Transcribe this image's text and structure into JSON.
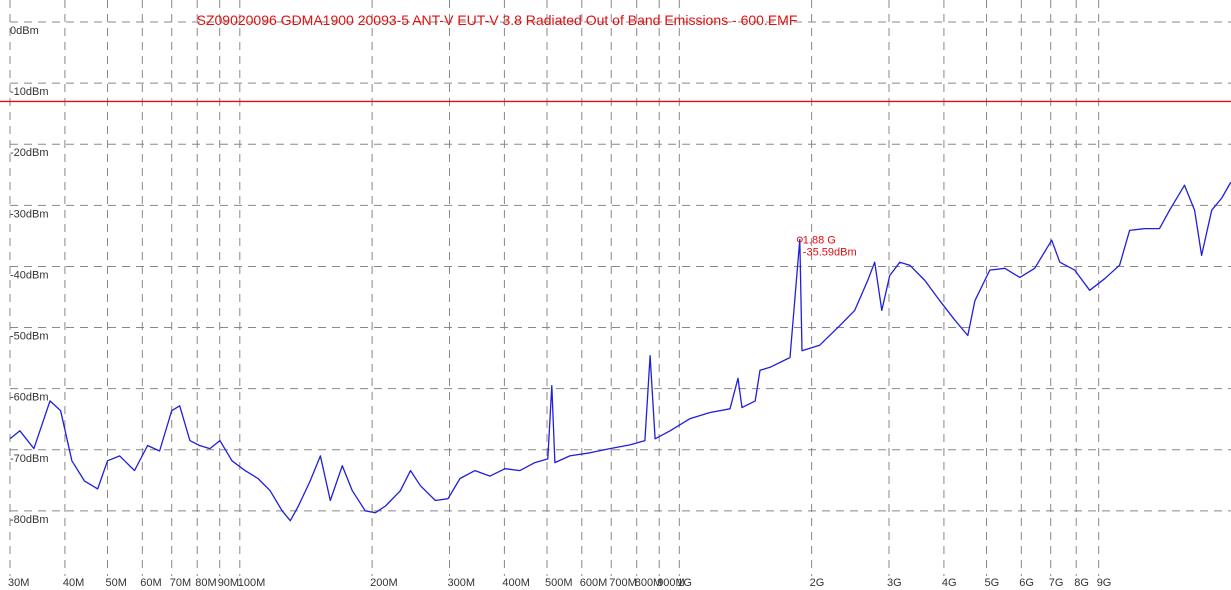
{
  "chart_data": {
    "type": "line",
    "title": "SZ09020096 GDMA1900 20093-5 ANT-V EUT-V 3.8 Radiated Out of Band Emissions - 600.EMF",
    "xscale": "log",
    "xlim": [
      30,
      18000
    ],
    "ylim": [
      -90,
      0
    ],
    "grid": true,
    "xticks": [
      {
        "value": 30,
        "label": "30M"
      },
      {
        "value": 40,
        "label": "40M"
      },
      {
        "value": 50,
        "label": "50M"
      },
      {
        "value": 60,
        "label": "60M"
      },
      {
        "value": 70,
        "label": "70M"
      },
      {
        "value": 80,
        "label": "80M"
      },
      {
        "value": 90,
        "label": "90M"
      },
      {
        "value": 100,
        "label": "100M"
      },
      {
        "value": 200,
        "label": "200M"
      },
      {
        "value": 300,
        "label": "300M"
      },
      {
        "value": 400,
        "label": "400M"
      },
      {
        "value": 500,
        "label": "500M"
      },
      {
        "value": 600,
        "label": "600M"
      },
      {
        "value": 700,
        "label": "700M"
      },
      {
        "value": 800,
        "label": "800M"
      },
      {
        "value": 900,
        "label": "900M"
      },
      {
        "value": 1000,
        "label": "1G"
      },
      {
        "value": 2000,
        "label": "2G"
      },
      {
        "value": 3000,
        "label": "3G"
      },
      {
        "value": 4000,
        "label": "4G"
      },
      {
        "value": 5000,
        "label": "5G"
      },
      {
        "value": 6000,
        "label": "6G"
      },
      {
        "value": 7000,
        "label": "7G"
      },
      {
        "value": 8000,
        "label": "8G"
      },
      {
        "value": 9000,
        "label": "9G"
      }
    ],
    "yticks": [
      {
        "value": 0,
        "label": "0dBm"
      },
      {
        "value": -10,
        "label": "-10dBm"
      },
      {
        "value": -20,
        "label": "-20dBm"
      },
      {
        "value": -30,
        "label": "-30dBm"
      },
      {
        "value": -40,
        "label": "-40dBm"
      },
      {
        "value": -50,
        "label": "-50dBm"
      },
      {
        "value": -60,
        "label": "-60dBm"
      },
      {
        "value": -70,
        "label": "-70dBm"
      },
      {
        "value": -80,
        "label": "-80dBm"
      }
    ],
    "limit": {
      "value": -13,
      "color": "#e01010"
    },
    "marker": {
      "x": 1880,
      "y": -35.59,
      "labels": [
        "1.88 G",
        "-35.59dBm"
      ],
      "color": "#e01010"
    },
    "title_color": "#e01010",
    "series": [
      {
        "color": "#1f1fdc",
        "x": [
          30,
          31.6,
          34,
          37,
          39.1,
          41.5,
          44.3,
          47.5,
          50,
          53.3,
          57.6,
          61.7,
          65.7,
          70,
          73,
          77,
          81,
          85.5,
          90.1,
          96,
          102.8,
          110,
          117.2,
          124.9,
          130.3,
          135.9,
          144.6,
          152.5,
          160.7,
          171.1,
          180.3,
          193,
          203.5,
          214.5,
          232,
          244.5,
          257.7,
          278.7,
          297.7,
          317,
          342.9,
          371,
          401.2,
          433.8,
          469.2,
          502,
          512.6,
          521,
          563.4,
          626,
          695,
          772,
          835,
          858,
          881,
          953,
          1058,
          1175,
          1304,
          1360,
          1389,
          1488,
          1526,
          1609,
          1786,
          1880,
          1902,
          2086,
          2317,
          2506,
          2683,
          2783,
          2889,
          3011,
          3175,
          3346,
          3620,
          3914,
          4236,
          4534,
          4704,
          5088,
          5502,
          5952,
          6437,
          7036,
          7339,
          7938,
          8584,
          9288,
          10044,
          10583,
          11446,
          12379,
          13046,
          14110,
          14872,
          15431,
          16268,
          17152,
          17985
        ],
        "values": [
          -68.2,
          -66.9,
          -69.8,
          -62.0,
          -63.6,
          -71.8,
          -75.1,
          -76.4,
          -71.8,
          -71.0,
          -73.4,
          -69.3,
          -70.2,
          -63.6,
          -62.8,
          -68.5,
          -69.3,
          -69.8,
          -68.5,
          -71.8,
          -73.4,
          -74.7,
          -76.7,
          -80.0,
          -81.6,
          -79.2,
          -75.1,
          -71.0,
          -78.3,
          -72.6,
          -76.7,
          -80.0,
          -80.3,
          -79.2,
          -76.7,
          -73.4,
          -75.9,
          -78.3,
          -78.0,
          -74.7,
          -73.4,
          -74.3,
          -73.1,
          -73.4,
          -72.1,
          -71.5,
          -59.5,
          -72.1,
          -71.0,
          -70.5,
          -69.8,
          -69.2,
          -68.5,
          -54.6,
          -68.2,
          -66.9,
          -64.9,
          -63.9,
          -63.3,
          -58.3,
          -63.1,
          -62.0,
          -57.0,
          -56.5,
          -54.9,
          -35.59,
          -53.8,
          -52.9,
          -49.7,
          -47.2,
          -42.3,
          -39.3,
          -47.2,
          -41.5,
          -39.3,
          -39.8,
          -42.3,
          -45.6,
          -48.8,
          -51.3,
          -45.6,
          -40.6,
          -40.3,
          -41.8,
          -40.3,
          -35.7,
          -39.3,
          -40.6,
          -43.9,
          -42.0,
          -39.8,
          -34.1,
          -33.8,
          -33.8,
          -30.8,
          -26.7,
          -30.8,
          -38.2,
          -30.8,
          -28.8,
          -26.2
        ]
      }
    ]
  }
}
